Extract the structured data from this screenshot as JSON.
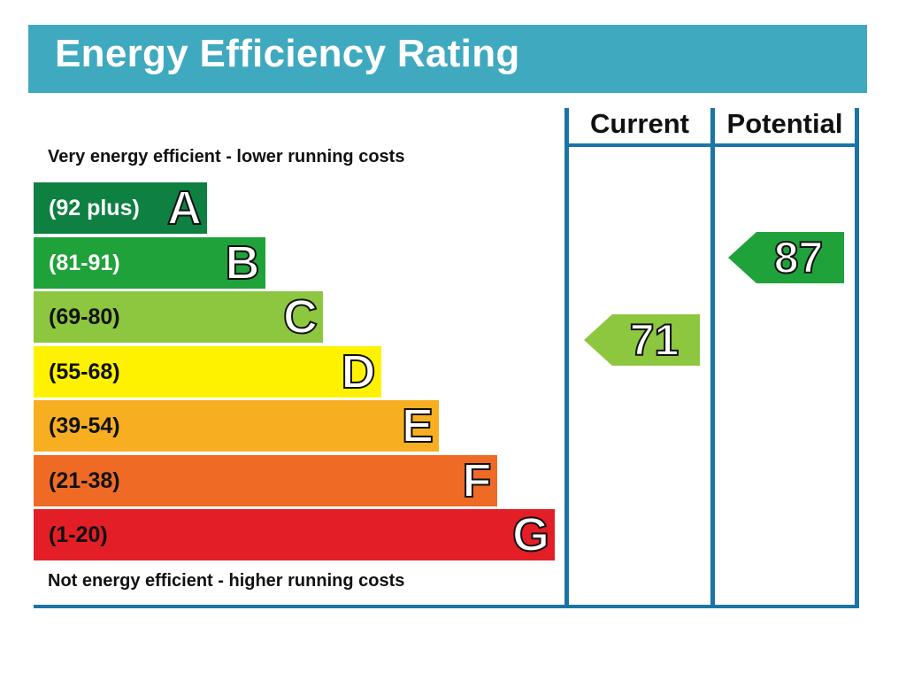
{
  "title": "Energy Efficiency Rating",
  "colors": {
    "header_bg": "#3fa9bf",
    "frame_lines": "#1a75a6",
    "band_A": "#0e8041",
    "band_B": "#1fa23a",
    "band_C": "#8dc63f",
    "band_D": "#fff200",
    "band_E": "#f7ae21",
    "band_F": "#ef6b25",
    "band_G": "#e31e26"
  },
  "chart_data": {
    "type": "bar",
    "title": "Energy Efficiency Rating",
    "top_caption": "Very energy efficient - lower running costs",
    "bottom_caption": "Not energy efficient - higher running costs",
    "bands": [
      {
        "letter": "A",
        "range": "(92 plus)",
        "min": 92,
        "max": 100,
        "color": "#0e8041",
        "text_color": "#ffffff"
      },
      {
        "letter": "B",
        "range": "(81-91)",
        "min": 81,
        "max": 91,
        "color": "#1fa23a",
        "text_color": "#ffffff"
      },
      {
        "letter": "C",
        "range": "(69-80)",
        "min": 69,
        "max": 80,
        "color": "#8dc63f",
        "text_color": "#111111"
      },
      {
        "letter": "D",
        "range": "(55-68)",
        "min": 55,
        "max": 68,
        "color": "#fff200",
        "text_color": "#111111"
      },
      {
        "letter": "E",
        "range": "(39-54)",
        "min": 39,
        "max": 54,
        "color": "#f7ae21",
        "text_color": "#111111"
      },
      {
        "letter": "F",
        "range": "(21-38)",
        "min": 21,
        "max": 38,
        "color": "#ef6b25",
        "text_color": "#111111"
      },
      {
        "letter": "G",
        "range": "(1-20)",
        "min": 1,
        "max": 20,
        "color": "#e31e26",
        "text_color": "#111111"
      }
    ],
    "columns": [
      "Current",
      "Potential"
    ],
    "ratings": [
      {
        "column": "Current",
        "value": 71,
        "band": "C",
        "color": "#8dc63f"
      },
      {
        "column": "Potential",
        "value": 87,
        "band": "B",
        "color": "#1fa23a"
      }
    ]
  }
}
